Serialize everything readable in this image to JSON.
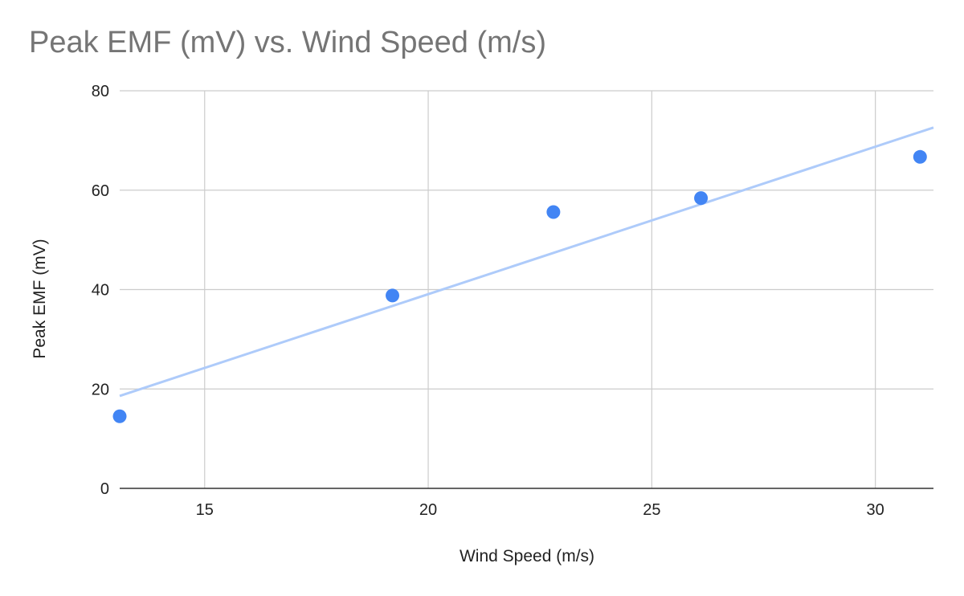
{
  "chart_data": {
    "type": "scatter",
    "title": "Peak EMF (mV) vs. Wind Speed (m/s)",
    "xlabel": "Wind Speed (m/s)",
    "ylabel": "Peak EMF (mV)",
    "xlim": [
      13.1,
      31.3
    ],
    "ylim": [
      0,
      80
    ],
    "x_ticks": [
      15,
      20,
      25,
      30
    ],
    "y_ticks": [
      0,
      20,
      40,
      60,
      80
    ],
    "grid": true,
    "legend": "none",
    "series": [
      {
        "x": [
          13.1,
          19.2,
          22.8,
          26.1,
          31.0
        ],
        "y": [
          14.5,
          38.8,
          55.6,
          58.4,
          66.7
        ],
        "color": "#4285f4"
      }
    ],
    "trendline": {
      "type": "linear",
      "x": [
        13.1,
        31.3
      ],
      "y": [
        18.6,
        72.6
      ],
      "color": "#aecbfa"
    }
  }
}
